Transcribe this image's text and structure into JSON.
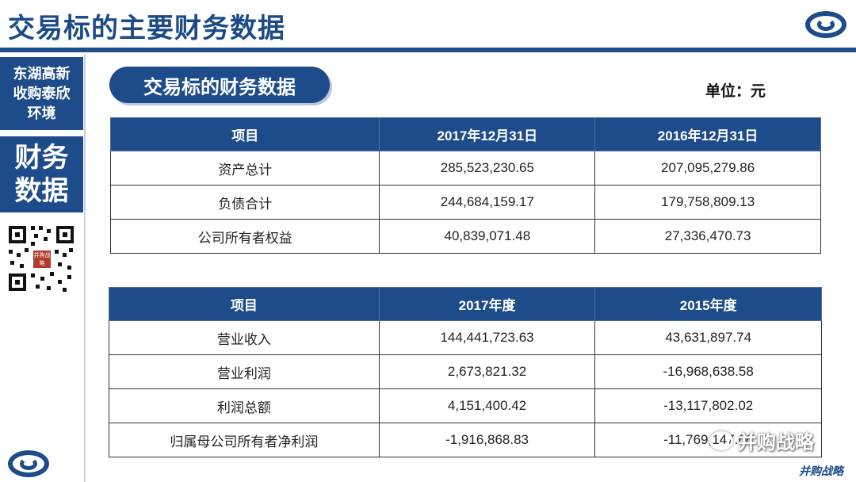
{
  "header": {
    "title": "交易标的主要财务数据"
  },
  "sidebar": {
    "topic_lines": [
      "东湖高新",
      "收购泰欣",
      "环境"
    ],
    "section_lines": [
      "财务",
      "数据"
    ],
    "qr_stamp_text": "并购战略"
  },
  "section": {
    "pill_label": "交易标的财务数据",
    "unit_label": "单位：元"
  },
  "balance_table": {
    "headers": [
      "项目",
      "2017年12月31日",
      "2016年12月31日"
    ],
    "rows": [
      [
        "资产总计",
        "285,523,230.65",
        "207,095,279.86"
      ],
      [
        "负债合计",
        "244,684,159.17",
        "179,758,809.13"
      ],
      [
        "公司所有者权益",
        "40,839,071.48",
        "27,336,470.73"
      ]
    ]
  },
  "income_table": {
    "headers": [
      "项目",
      "2017年度",
      "2015年度"
    ],
    "rows": [
      [
        "营业收入",
        "144,441,723.63",
        "43,631,897.74"
      ],
      [
        "营业利润",
        "2,673,821.32",
        "-16,968,638.58"
      ],
      [
        "利润总额",
        "4,151,400.42",
        "-13,117,802.02"
      ],
      [
        "归属母公司所有者净利润",
        "-1,916,868.83",
        "-11,769,147.66"
      ]
    ]
  },
  "footer": {
    "watermark": "并购战略",
    "brand": "并购战略"
  },
  "colors": {
    "primary": "#1e4c8a",
    "title_text": "#1b4a85"
  }
}
